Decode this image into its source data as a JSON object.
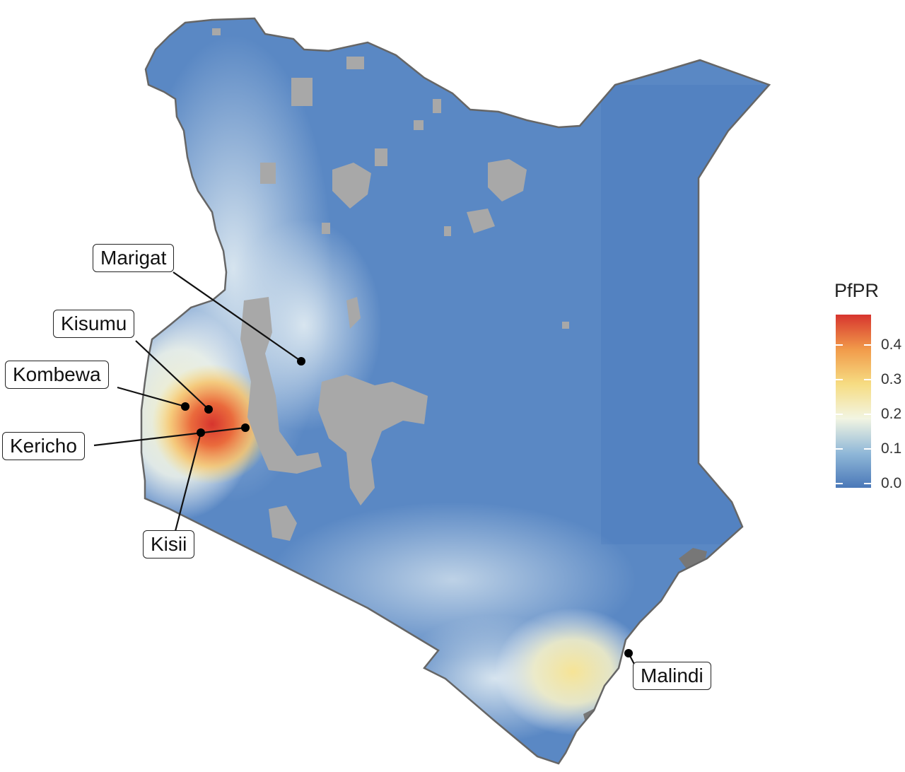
{
  "legend": {
    "title": "PfPR",
    "ticks": [
      "0.4",
      "0.3",
      "0.2",
      "0.1",
      "0.0"
    ],
    "colors": [
      "#4a78b8",
      "#90b8d8",
      "#f2f5e2",
      "#f6dc82",
      "#f19a4a",
      "#d7352e"
    ]
  },
  "sites": {
    "marigat": "Marigat",
    "kisumu": "Kisumu",
    "kombewa": "Kombewa",
    "kericho": "Kericho",
    "kisii": "Kisii",
    "malindi": "Malindi"
  },
  "colors": {
    "low_prevalence": "#5a88c4",
    "no_data": "#a8a8a8",
    "border": "#666666"
  }
}
